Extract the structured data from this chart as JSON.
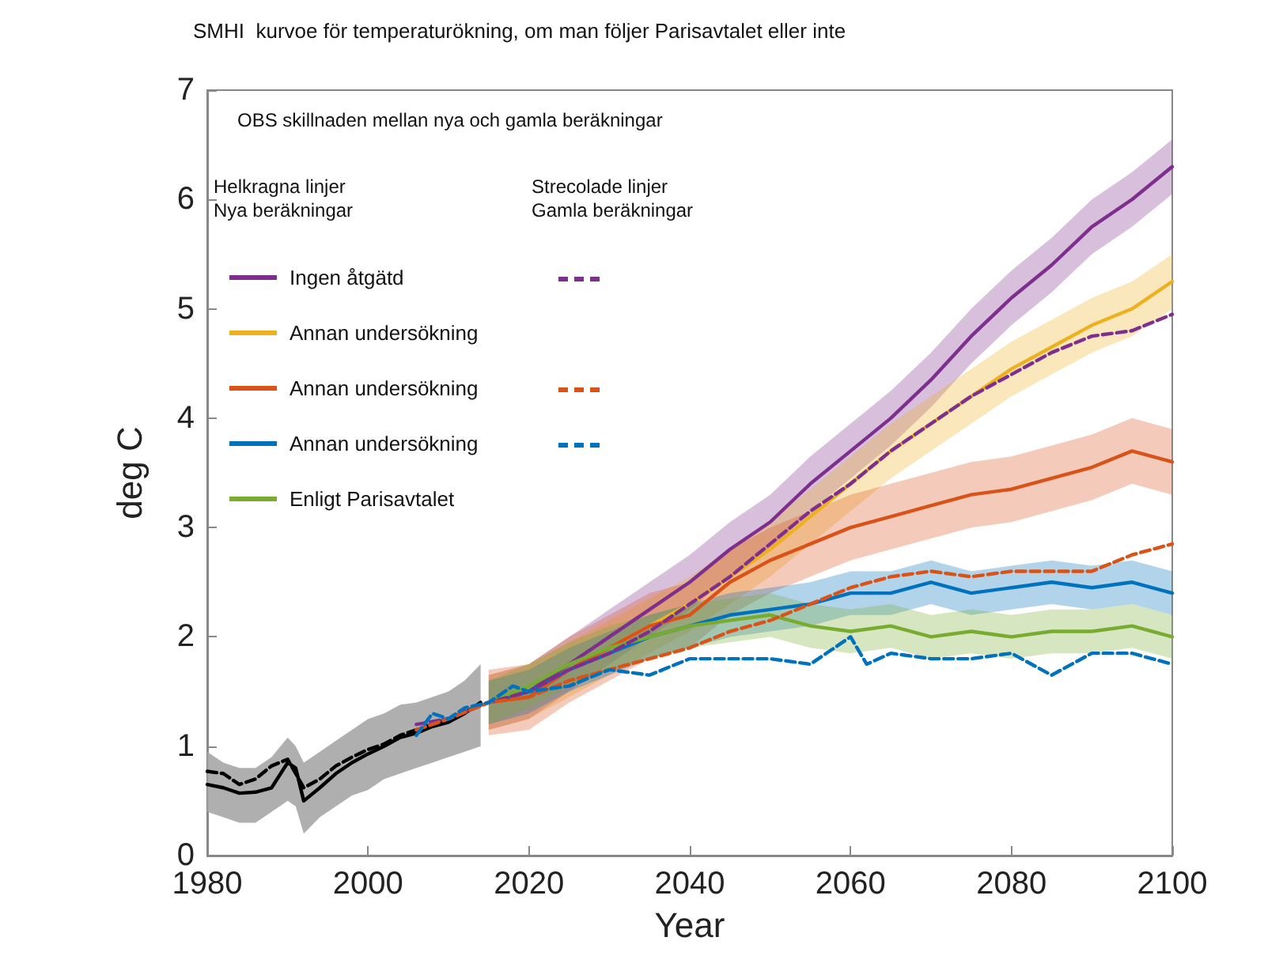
{
  "chart_data": {
    "type": "line",
    "title": "SMHI  kurvoe för temperaturökning, om man följer Parisavtalet eller inte",
    "xlabel": "Year",
    "ylabel": "deg C",
    "xlim": [
      1980,
      2100
    ],
    "xticks": [
      1980,
      2000,
      2020,
      2040,
      2060,
      2080,
      2100
    ],
    "ylim": [
      0,
      7
    ],
    "yticks": [
      0,
      1,
      2,
      3,
      4,
      5,
      6,
      7
    ],
    "legend": "top left",
    "annotations": [
      "OBS skillnaden mellan nya och gamla beräkningar",
      "Helkragna linjer",
      "Nya beräkningar",
      "Strecolade linjer",
      "Gamla beräkningar"
    ],
    "series": [
      {
        "color": "#000000",
        "x": [
          1980,
          1982,
          1984,
          1986,
          1988,
          1990,
          1991,
          1992,
          1994,
          1996,
          1998,
          2000,
          2002,
          2004,
          2006,
          2008,
          2010,
          2012,
          2014
        ],
        "values": [
          0.65,
          0.62,
          0.57,
          0.58,
          0.62,
          0.85,
          0.8,
          0.5,
          0.62,
          0.75,
          0.85,
          0.93,
          1.0,
          1.08,
          1.12,
          1.18,
          1.22,
          1.3,
          1.4
        ],
        "lower": [
          0.4,
          0.35,
          0.3,
          0.3,
          0.4,
          0.5,
          0.45,
          0.2,
          0.35,
          0.45,
          0.55,
          0.6,
          0.7,
          0.75,
          0.8,
          0.85,
          0.9,
          0.95,
          1.0
        ],
        "upper": [
          0.95,
          0.85,
          0.8,
          0.8,
          0.9,
          1.08,
          1.0,
          0.85,
          0.95,
          1.05,
          1.15,
          1.25,
          1.3,
          1.38,
          1.4,
          1.45,
          1.5,
          1.6,
          1.75
        ]
      },
      {
        "color": "#000000",
        "line_style": "dashed",
        "x": [
          1980,
          1982,
          1984,
          1986,
          1988,
          1990,
          1992,
          1994,
          1996,
          1998,
          2000,
          2002,
          2004,
          2006,
          2008,
          2010,
          2012
        ],
        "values": [
          0.77,
          0.75,
          0.65,
          0.7,
          0.82,
          0.88,
          0.62,
          0.7,
          0.82,
          0.9,
          0.97,
          1.02,
          1.1,
          1.15,
          1.2,
          1.25,
          1.32
        ]
      },
      {
        "name": "Ingen åtgätd",
        "color": "#7e2f8e",
        "x": [
          2015,
          2020,
          2025,
          2030,
          2035,
          2040,
          2045,
          2050,
          2055,
          2060,
          2065,
          2070,
          2075,
          2080,
          2085,
          2090,
          2095,
          2100
        ],
        "values": [
          1.4,
          1.5,
          1.75,
          2.0,
          2.25,
          2.5,
          2.8,
          3.05,
          3.4,
          3.7,
          4.0,
          4.35,
          4.75,
          5.1,
          5.4,
          5.75,
          6.0,
          6.3
        ],
        "lower": [
          1.15,
          1.25,
          1.5,
          1.75,
          2.0,
          2.25,
          2.55,
          2.8,
          3.15,
          3.45,
          3.75,
          4.1,
          4.5,
          4.85,
          5.15,
          5.5,
          5.75,
          6.05
        ],
        "upper": [
          1.65,
          1.75,
          2.0,
          2.25,
          2.5,
          2.75,
          3.05,
          3.3,
          3.65,
          3.95,
          4.25,
          4.6,
          5.0,
          5.35,
          5.65,
          6.0,
          6.25,
          6.55
        ]
      },
      {
        "name": "Annan undersökning",
        "color": "#edb120",
        "x": [
          2015,
          2020,
          2025,
          2030,
          2035,
          2040,
          2045,
          2050,
          2055,
          2060,
          2065,
          2070,
          2075,
          2080,
          2085,
          2090,
          2095,
          2100
        ],
        "values": [
          null,
          null,
          null,
          1.9,
          2.1,
          2.3,
          2.55,
          2.8,
          3.1,
          3.4,
          3.7,
          3.95,
          4.2,
          4.45,
          4.65,
          4.85,
          5.0,
          5.25
        ],
        "lower": [
          1.15,
          1.25,
          1.45,
          1.65,
          1.85,
          2.05,
          2.3,
          2.55,
          2.85,
          3.15,
          3.45,
          3.7,
          3.95,
          4.2,
          4.4,
          4.6,
          4.75,
          5.0
        ],
        "upper": [
          1.65,
          1.75,
          1.95,
          2.15,
          2.35,
          2.55,
          2.8,
          3.05,
          3.35,
          3.65,
          3.95,
          4.2,
          4.45,
          4.7,
          4.9,
          5.1,
          5.25,
          5.5
        ]
      },
      {
        "name": "Annan undersökning",
        "color": "#d95319",
        "x": [
          2015,
          2020,
          2025,
          2030,
          2035,
          2040,
          2045,
          2050,
          2055,
          2060,
          2065,
          2070,
          2075,
          2080,
          2085,
          2090,
          2095,
          2100
        ],
        "values": [
          1.4,
          1.45,
          1.7,
          1.9,
          2.1,
          2.2,
          2.5,
          2.7,
          2.85,
          3.0,
          3.1,
          3.2,
          3.3,
          3.35,
          3.45,
          3.55,
          3.7,
          3.6
        ],
        "lower": [
          1.1,
          1.15,
          1.4,
          1.6,
          1.8,
          1.9,
          2.2,
          2.4,
          2.55,
          2.7,
          2.8,
          2.9,
          3.0,
          3.05,
          3.15,
          3.25,
          3.4,
          3.3
        ],
        "upper": [
          1.7,
          1.75,
          2.0,
          2.2,
          2.4,
          2.5,
          2.8,
          3.0,
          3.15,
          3.3,
          3.4,
          3.5,
          3.6,
          3.65,
          3.75,
          3.85,
          4.0,
          3.9
        ]
      },
      {
        "name": "Annan undersökning",
        "color": "#0072bd",
        "x": [
          2015,
          2020,
          2025,
          2030,
          2035,
          2040,
          2045,
          2050,
          2055,
          2060,
          2065,
          2070,
          2075,
          2080,
          2085,
          2090,
          2095,
          2100
        ],
        "values": [
          1.4,
          1.5,
          1.7,
          1.85,
          2.0,
          2.1,
          2.2,
          2.25,
          2.3,
          2.4,
          2.4,
          2.5,
          2.4,
          2.45,
          2.5,
          2.45,
          2.5,
          2.4
        ],
        "lower": [
          1.2,
          1.3,
          1.5,
          1.65,
          1.8,
          1.9,
          2.0,
          2.05,
          2.1,
          2.2,
          2.2,
          2.3,
          2.2,
          2.25,
          2.3,
          2.25,
          2.3,
          2.2
        ],
        "upper": [
          1.6,
          1.7,
          1.9,
          2.05,
          2.2,
          2.3,
          2.4,
          2.45,
          2.5,
          2.6,
          2.6,
          2.7,
          2.6,
          2.65,
          2.7,
          2.65,
          2.7,
          2.6
        ]
      },
      {
        "name": "Enligt Parisavtalet",
        "color": "#77ac30",
        "x": [
          2015,
          2020,
          2025,
          2030,
          2035,
          2040,
          2045,
          2050,
          2055,
          2060,
          2065,
          2070,
          2075,
          2080,
          2085,
          2090,
          2095,
          2100
        ],
        "values": [
          1.4,
          1.55,
          1.75,
          1.9,
          2.0,
          2.1,
          2.15,
          2.2,
          2.1,
          2.05,
          2.1,
          2.0,
          2.05,
          2.0,
          2.05,
          2.05,
          2.1,
          2.0
        ],
        "lower": [
          1.2,
          1.35,
          1.55,
          1.7,
          1.8,
          1.9,
          1.95,
          2.0,
          1.9,
          1.85,
          1.9,
          1.8,
          1.85,
          1.8,
          1.85,
          1.85,
          1.9,
          1.8
        ],
        "upper": [
          1.6,
          1.75,
          1.95,
          2.1,
          2.2,
          2.3,
          2.35,
          2.4,
          2.3,
          2.25,
          2.3,
          2.2,
          2.25,
          2.2,
          2.25,
          2.25,
          2.3,
          2.2
        ]
      },
      {
        "color": "#7e2f8e",
        "line_style": "dashed",
        "x": [
          2006,
          2010,
          2015,
          2020,
          2025,
          2030,
          2035,
          2040,
          2045,
          2050,
          2055,
          2060,
          2065,
          2070,
          2075,
          2080,
          2085,
          2090,
          2095,
          2100
        ],
        "values": [
          1.2,
          1.25,
          1.4,
          1.5,
          1.7,
          1.85,
          2.05,
          2.3,
          2.55,
          2.85,
          3.15,
          3.4,
          3.7,
          3.95,
          4.2,
          4.4,
          4.6,
          4.75,
          4.8,
          4.95
        ]
      },
      {
        "color": "#d95319",
        "line_style": "dashed",
        "x": [
          2006,
          2010,
          2015,
          2020,
          2025,
          2030,
          2035,
          2040,
          2045,
          2050,
          2055,
          2060,
          2065,
          2070,
          2075,
          2080,
          2085,
          2090,
          2095,
          2100
        ],
        "values": [
          1.15,
          1.25,
          1.4,
          1.45,
          1.6,
          1.7,
          1.8,
          1.9,
          2.05,
          2.15,
          2.3,
          2.45,
          2.55,
          2.6,
          2.55,
          2.6,
          2.6,
          2.6,
          2.75,
          2.85
        ]
      },
      {
        "color": "#0072bd",
        "line_style": "dashed",
        "x": [
          2006,
          2008,
          2010,
          2012,
          2015,
          2018,
          2020,
          2025,
          2030,
          2035,
          2040,
          2045,
          2050,
          2055,
          2058,
          2060,
          2062,
          2065,
          2070,
          2075,
          2080,
          2085,
          2090,
          2095,
          2100
        ],
        "values": [
          1.1,
          1.3,
          1.25,
          1.35,
          1.4,
          1.55,
          1.5,
          1.55,
          1.7,
          1.65,
          1.8,
          1.8,
          1.8,
          1.75,
          1.9,
          2.0,
          1.75,
          1.85,
          1.8,
          1.8,
          1.85,
          1.65,
          1.85,
          1.85,
          1.75
        ]
      }
    ]
  }
}
